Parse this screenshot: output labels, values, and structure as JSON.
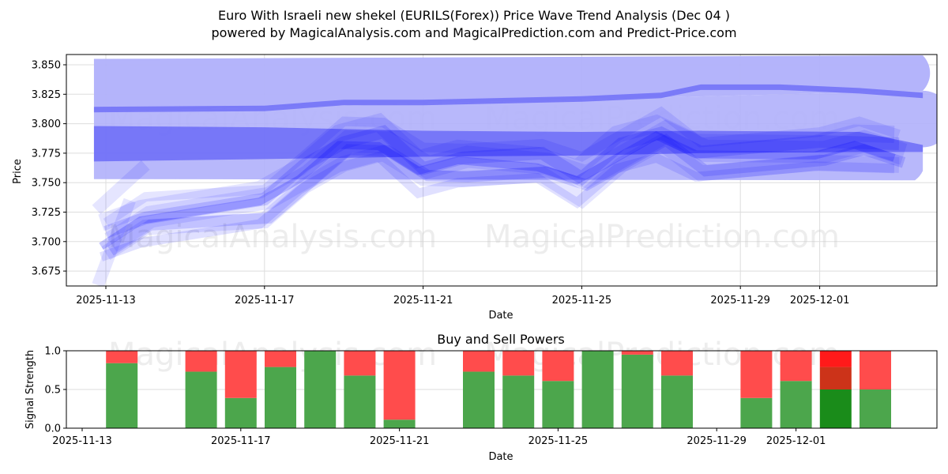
{
  "header": {
    "title_line1": "Euro With Israeli new shekel (EURILS(Forex)) Price Wave Trend Analysis (Dec 04 )",
    "title_line2": "powered by MagicalAnalysis.com and MagicalPrediction.com and Predict-Price.com"
  },
  "watermarks": {
    "left": "MagicalAnalysis.com",
    "right": "MagicalPrediction.com"
  },
  "colors": {
    "wave_fill": "#0000ff",
    "wide_band": "#b0b0fb",
    "buy": "#4ca64c",
    "sell": "#ff4c4c",
    "buy_strong": "#1a8c1a",
    "sell_strong": "#ff1a1a",
    "sell_mid": "#cc3319",
    "grid": "#dddddd"
  },
  "chart_data": [
    {
      "type": "area",
      "title": "Euro With Israeli new shekel (EURILS(Forex)) Price Wave Trend Analysis (Dec 04 )",
      "xlabel": "Date",
      "ylabel": "Price",
      "ylim": [
        3.661,
        3.858
      ],
      "yticks": [
        "3.675",
        "3.700",
        "3.725",
        "3.750",
        "3.775",
        "3.800",
        "3.825",
        "3.850"
      ],
      "xticks": [
        "2025-11-13",
        "2025-11-17",
        "2025-11-21",
        "2025-11-25",
        "2025-11-29",
        "2025-12-01"
      ],
      "grid": true,
      "bands": [
        {
          "name": "wide-band-top",
          "x": [
            "2025-11-12.7",
            "2025-12-03.6"
          ],
          "upper": [
            3.855,
            3.858
          ],
          "lower": [
            3.753,
            3.752
          ]
        },
        {
          "name": "upper-trend-line",
          "x": [
            "2025-11-12.7",
            "2025-11-17",
            "2025-11-19",
            "2025-11-21",
            "2025-11-25",
            "2025-11-27",
            "2025-11-28",
            "2025-11-30",
            "2025-12-02",
            "2025-12-03.6"
          ],
          "values": [
            3.812,
            3.813,
            3.818,
            3.818,
            3.821,
            3.824,
            3.831,
            3.831,
            3.828,
            3.824
          ]
        },
        {
          "name": "mid-trend-band",
          "x": [
            "2025-11-12.7",
            "2025-11-17",
            "2025-11-21",
            "2025-11-25",
            "2025-11-28",
            "2025-12-02",
            "2025-12-03.6"
          ],
          "upper": [
            3.798,
            3.797,
            3.794,
            3.793,
            3.794,
            3.793,
            3.782
          ],
          "lower": [
            3.768,
            3.77,
            3.772,
            3.773,
            3.775,
            3.776,
            3.776
          ]
        }
      ],
      "price_waves": {
        "x": [
          "2025-11-13",
          "2025-11-14",
          "2025-11-17",
          "2025-11-18",
          "2025-11-19",
          "2025-11-20",
          "2025-11-21",
          "2025-11-22",
          "2025-11-24",
          "2025-11-25",
          "2025-11-26",
          "2025-11-27",
          "2025-11-28",
          "2025-12-01",
          "2025-12-02",
          "2025-12-03"
        ],
        "values": [
          3.7,
          3.718,
          3.73,
          3.755,
          3.78,
          3.785,
          3.76,
          3.765,
          3.765,
          3.75,
          3.775,
          3.79,
          3.77,
          3.775,
          3.78,
          3.775
        ]
      }
    },
    {
      "type": "bar",
      "title": "Buy and Sell Powers",
      "xlabel": "Date",
      "ylabel": "Signal Strength",
      "ylim": [
        0,
        1.0
      ],
      "yticks": [
        "0.0",
        "0.5",
        "1.0"
      ],
      "xticks": [
        "2025-11-13",
        "2025-11-17",
        "2025-11-21",
        "2025-11-25",
        "2025-11-29",
        "2025-12-01"
      ],
      "categories": [
        "2025-11-14",
        "2025-11-16",
        "2025-11-17",
        "2025-11-18",
        "2025-11-19",
        "2025-11-20",
        "2025-11-21",
        "2025-11-23",
        "2025-11-24",
        "2025-11-25",
        "2025-11-26",
        "2025-11-27",
        "2025-11-28",
        "2025-11-30",
        "2025-12-01",
        "2025-12-02",
        "2025-12-03"
      ],
      "series": [
        {
          "name": "Buy",
          "values": [
            0.84,
            0.73,
            0.39,
            0.79,
            1.0,
            0.68,
            0.11,
            0.73,
            0.68,
            0.61,
            1.0,
            0.95,
            0.68,
            0.39,
            0.61,
            0.5,
            0.5
          ]
        },
        {
          "name": "Sell",
          "values": [
            0.16,
            0.27,
            0.61,
            0.21,
            0.0,
            0.32,
            0.89,
            0.27,
            0.32,
            0.39,
            0.0,
            0.05,
            0.32,
            0.61,
            0.39,
            0.5,
            0.5
          ]
        }
      ],
      "highlight": {
        "category": "2025-12-02",
        "buy_color": "#1a8c1a",
        "sell_split": [
          0.29,
          0.21
        ]
      }
    }
  ]
}
